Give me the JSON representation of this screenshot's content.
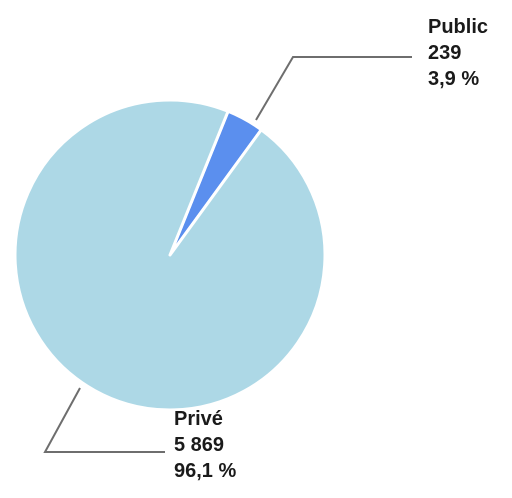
{
  "chart_data": {
    "type": "pie",
    "title": "",
    "slices": [
      {
        "label": "Public",
        "value": 239,
        "value_label": "239",
        "percent": 3.9,
        "percent_label": "3,9 %",
        "color": "#5b8fee"
      },
      {
        "label": "Privé",
        "value": 5869,
        "value_label": "5 869",
        "percent": 96.1,
        "percent_label": "96,1 %",
        "color": "#add8e6"
      }
    ],
    "legend": "none",
    "slice_border_color": "#ffffff"
  }
}
